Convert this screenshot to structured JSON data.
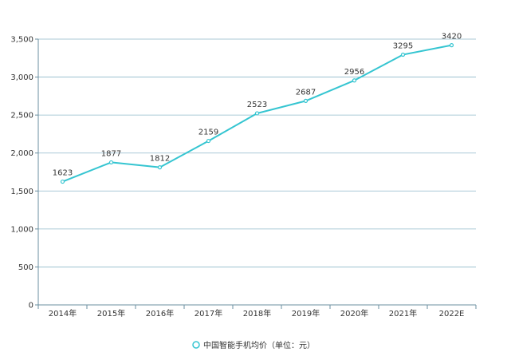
{
  "chart_data": {
    "type": "line",
    "categories": [
      "2014年",
      "2015年",
      "2016年",
      "2017年",
      "2018年",
      "2019年",
      "2020年",
      "2021年",
      "2022E"
    ],
    "series": [
      {
        "name": "中国智能手机均价（单位：元）",
        "values": [
          1623,
          1877,
          1812,
          2159,
          2523,
          2687,
          2956,
          3295,
          3420
        ]
      }
    ],
    "data_labels": [
      "1623",
      "1877",
      "1812",
      "2159",
      "2523",
      "2687",
      "2956",
      "3295",
      "3420"
    ],
    "y_ticks": [
      0,
      500,
      1000,
      1500,
      2000,
      2500,
      3000,
      3500
    ],
    "y_tick_labels": [
      "0",
      "500",
      "1,000",
      "1,500",
      "2,000",
      "2,500",
      "3,000",
      "3,500"
    ],
    "ylim": [
      0,
      3500
    ],
    "grid": true,
    "legend_position": "bottom",
    "colors": {
      "line": "#35c5d1",
      "grid": "#8fb9c9",
      "axis": "#6b8fa0"
    }
  }
}
